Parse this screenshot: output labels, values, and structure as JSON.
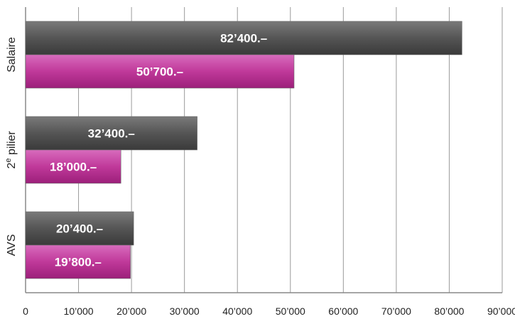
{
  "chart_data": {
    "type": "bar",
    "orientation": "horizontal",
    "categories": [
      "Salaire",
      "2e pilier",
      "AVS"
    ],
    "series": [
      {
        "values": [
          82400,
          32400,
          20400
        ],
        "labels": [
          "82’400.–",
          "32’400.–",
          "20’400.–"
        ],
        "color": "#555555"
      },
      {
        "values": [
          50700,
          18000,
          19800
        ],
        "labels": [
          "50’700.–",
          "18’000.–",
          "19’800.–"
        ],
        "color": "#c0399a"
      }
    ],
    "x_ticks": [
      "0",
      "10’000",
      "20’000",
      "30’000",
      "40’000",
      "50’000",
      "60’000",
      "70’000",
      "80’000",
      "90’000"
    ],
    "xlim": [
      0,
      90000
    ],
    "grid": true,
    "legend": "none"
  }
}
